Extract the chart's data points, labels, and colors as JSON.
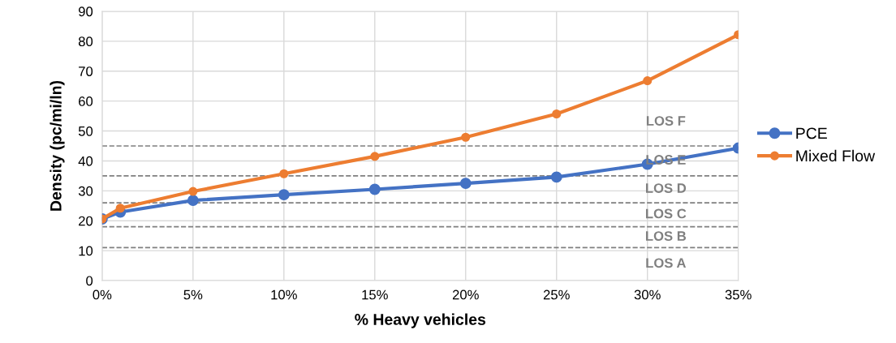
{
  "chart_data": {
    "type": "line",
    "xlabel": "% Heavy vehicles",
    "ylabel": "Density (pc/mi/ln)",
    "x": [
      0,
      1,
      5,
      10,
      15,
      20,
      25,
      30,
      35
    ],
    "series": [
      {
        "name": "PCE",
        "color": "#4472c4",
        "values": [
          20.6,
          22.9,
          26.8,
          28.7,
          30.5,
          32.5,
          34.6,
          38.9,
          44.3
        ]
      },
      {
        "name": "Mixed Flow",
        "color": "#ed7d31",
        "values": [
          20.6,
          24.2,
          29.8,
          35.7,
          41.5,
          47.9,
          55.7,
          66.8,
          82.2
        ]
      }
    ],
    "xlim": [
      0,
      35
    ],
    "ylim": [
      0,
      90
    ],
    "xticks": [
      {
        "value": 0,
        "label": "0%"
      },
      {
        "value": 5,
        "label": "5%"
      },
      {
        "value": 10,
        "label": "10%"
      },
      {
        "value": 15,
        "label": "15%"
      },
      {
        "value": 20,
        "label": "20%"
      },
      {
        "value": 25,
        "label": "25%"
      },
      {
        "value": 30,
        "label": "30%"
      },
      {
        "value": 35,
        "label": "35%"
      }
    ],
    "yticks": [
      0,
      10,
      20,
      30,
      40,
      50,
      60,
      70,
      80,
      90
    ],
    "ref_lines": [
      {
        "axis": "y",
        "value": 11,
        "color": "#7f7f7f",
        "line_style": "dashed"
      },
      {
        "axis": "y",
        "value": 18,
        "color": "#7f7f7f",
        "line_style": "dashed"
      },
      {
        "axis": "y",
        "value": 26,
        "color": "#7f7f7f",
        "line_style": "dashed"
      },
      {
        "axis": "y",
        "value": 35,
        "color": "#7f7f7f",
        "line_style": "dashed"
      },
      {
        "axis": "y",
        "value": 45,
        "color": "#7f7f7f",
        "line_style": "dashed"
      }
    ],
    "annotations": [
      "LOS F",
      "LOS E",
      "LOS D",
      "LOS C",
      "LOS B",
      "LOS A"
    ],
    "grid": true,
    "legend": "right",
    "marker": "circle",
    "line_style": "solid"
  }
}
